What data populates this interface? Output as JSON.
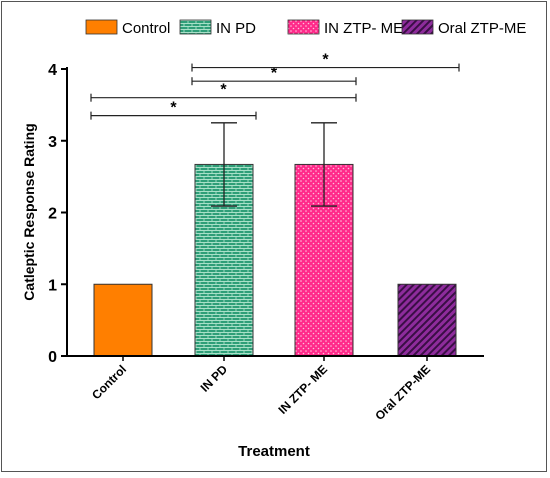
{
  "chart_data": {
    "type": "bar",
    "title": "",
    "xlabel": "Treatment",
    "ylabel": "Catleptic Response Rating",
    "ylim": [
      0,
      4
    ],
    "yticks": [
      "0",
      "1",
      "2",
      "3",
      "4"
    ],
    "categories": [
      "Control",
      "IN PD",
      "IN ZTP- ME",
      "Oral ZTP-ME"
    ],
    "values": [
      1,
      2.67,
      2.67,
      1
    ],
    "errors": [
      0,
      0.58,
      0.58,
      0
    ],
    "legend": [
      "Control",
      "IN PD",
      "IN ZTP- ME",
      "Oral ZTP-ME"
    ],
    "legend_position": "top",
    "grid": false,
    "colors": [
      "#ff7f00",
      "#2e9e78",
      "#ff2a8a",
      "#8e2c9c"
    ],
    "patterns": [
      "solid",
      "brick",
      "dots",
      "diagonal"
    ],
    "significance": [
      {
        "from": "Control",
        "to": "IN PD",
        "label": "*",
        "y": 3.35
      },
      {
        "from": "Control",
        "to": "IN ZTP- ME",
        "label": "*",
        "y": 3.6
      },
      {
        "from": "IN PD",
        "to": "IN ZTP- ME",
        "label": "*",
        "y": 3.83
      },
      {
        "from": "IN PD",
        "to": "Oral ZTP-ME",
        "label": "*",
        "y": 4.02
      }
    ]
  }
}
